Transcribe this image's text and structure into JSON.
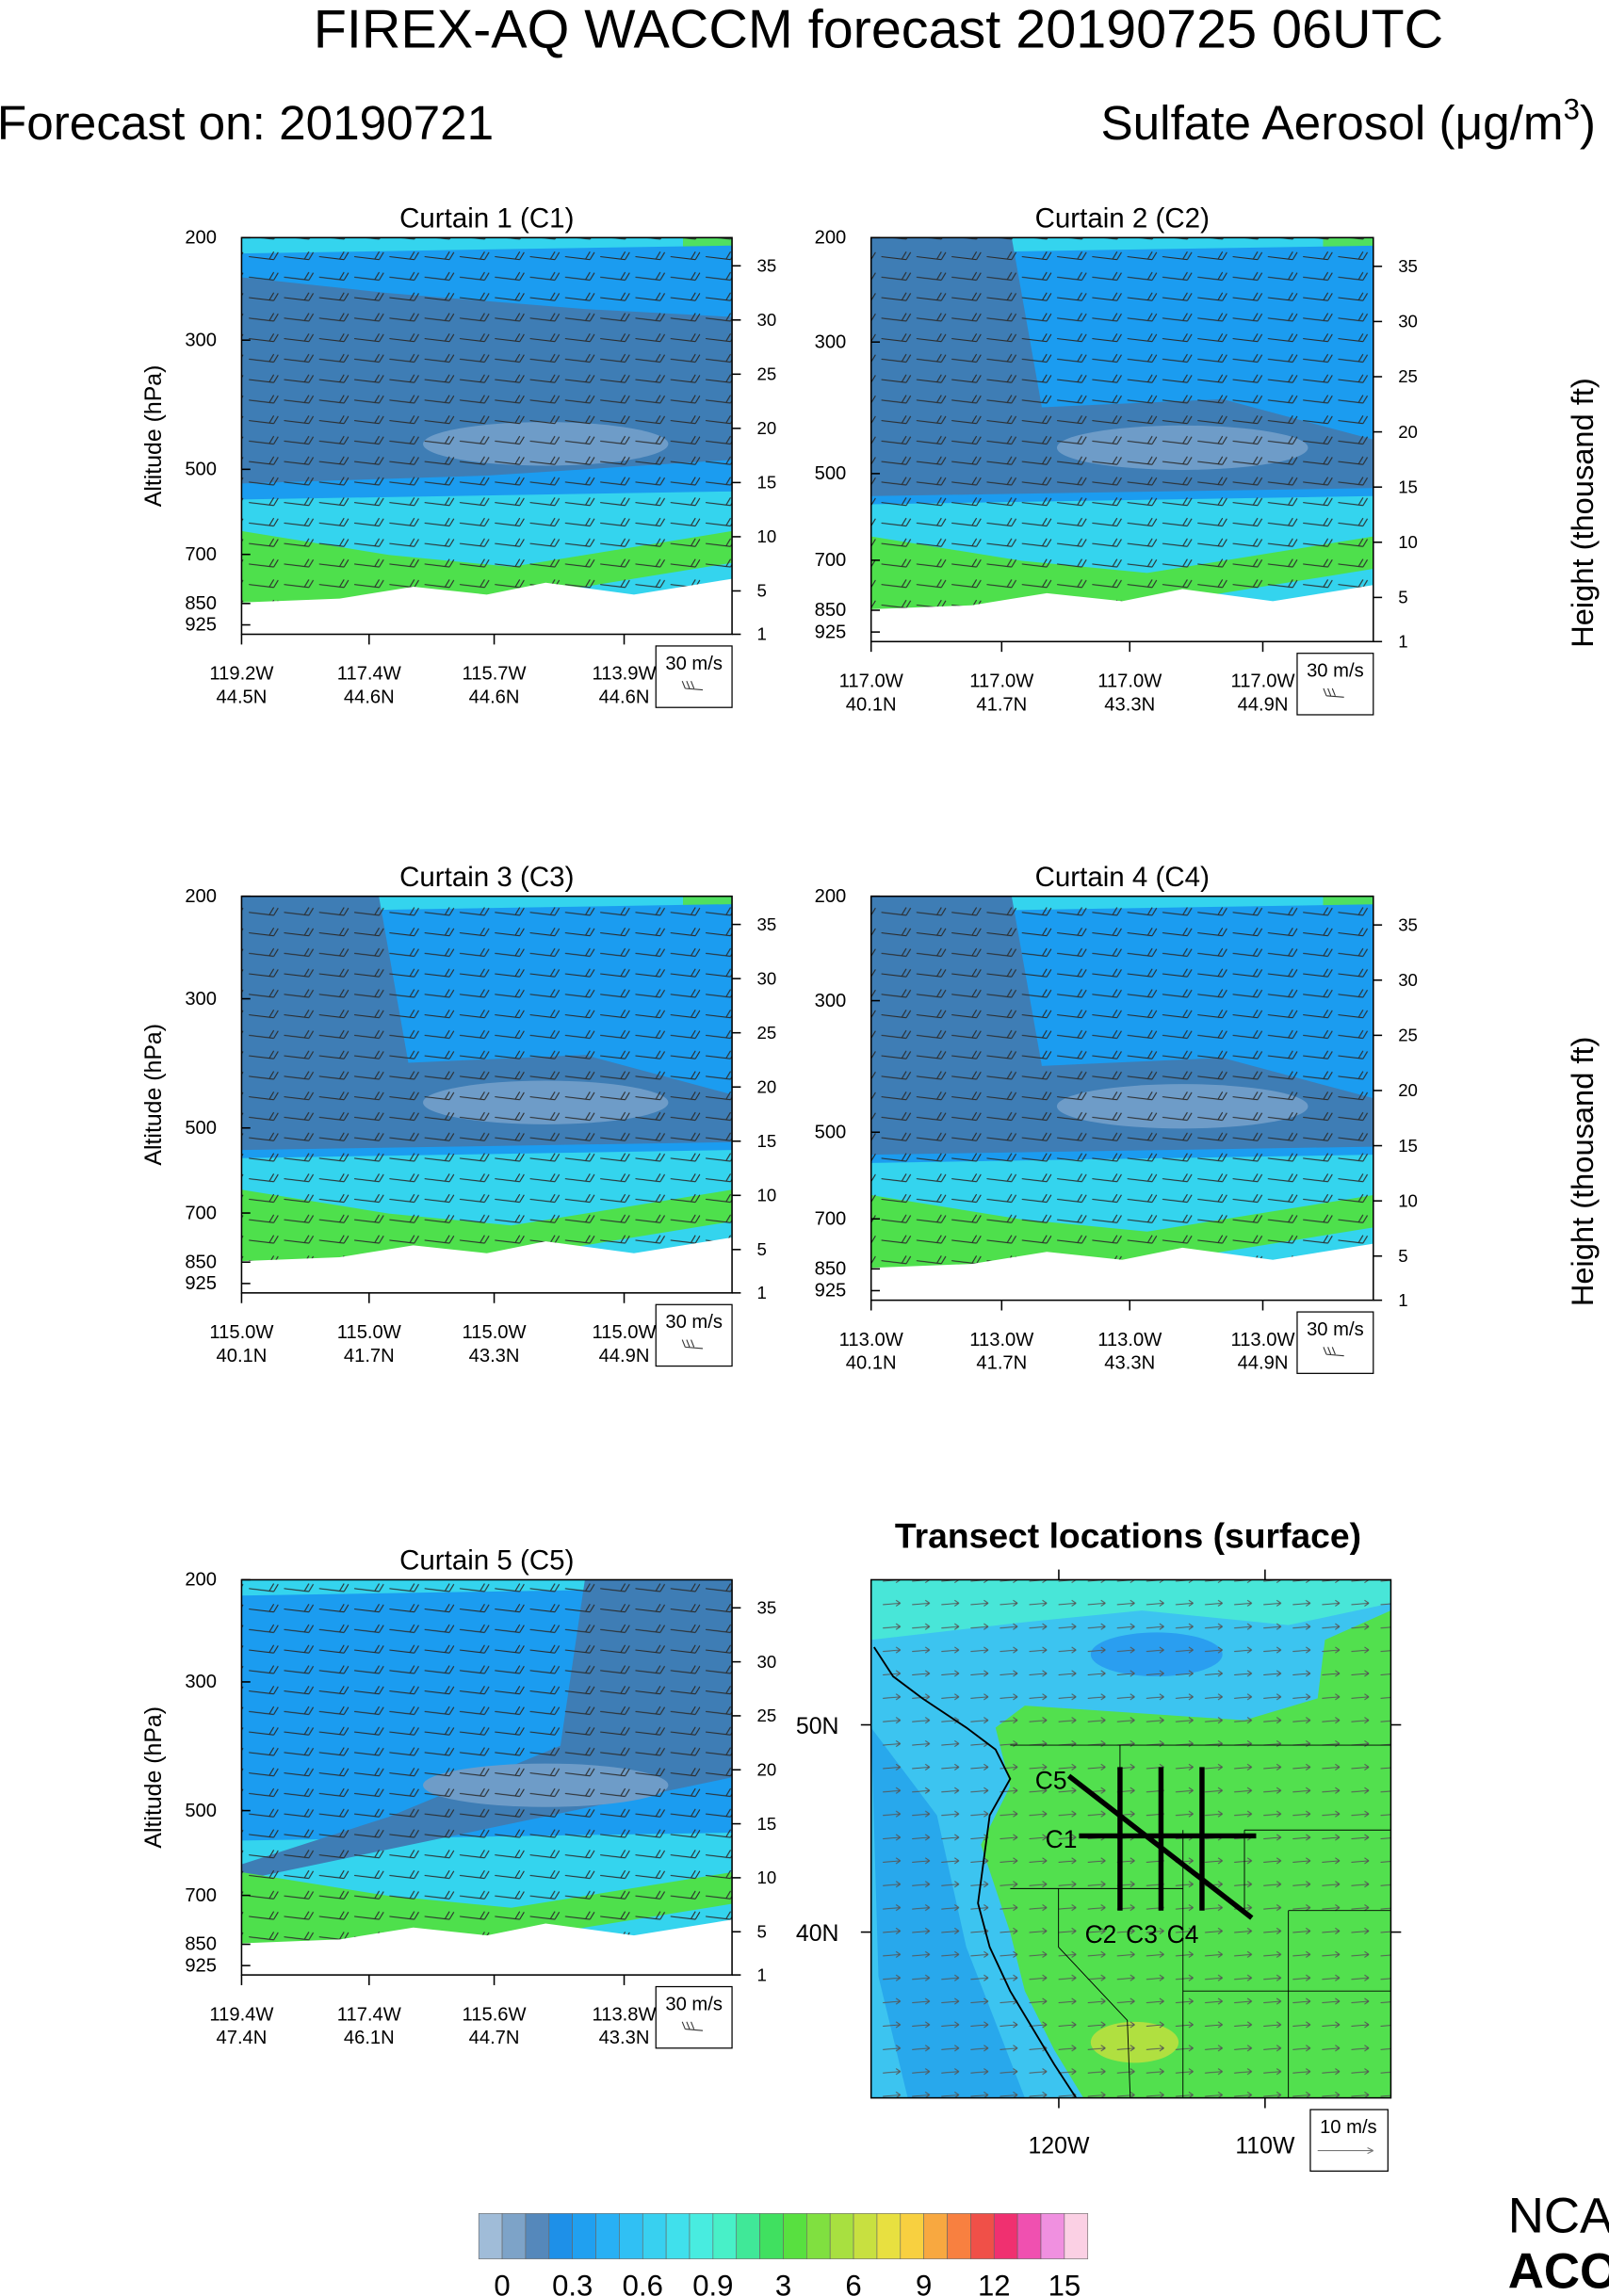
{
  "title": "FIREX-AQ WACCM forecast 20190725 06UTC",
  "forecast_on": "Forecast on: 20190721",
  "species": {
    "text": "Sulfate Aerosol (μg/m",
    "superscript": "3",
    "close": ")"
  },
  "curtains": [
    {
      "title": "Curtain 1 (C1)",
      "ylabel": "Altitude (hPa)",
      "ylim": [
        200,
        960
      ],
      "yticks": [
        200,
        300,
        500,
        700,
        850,
        925
      ],
      "y2lim": [
        1,
        37.6
      ],
      "y2ticks": [
        1,
        5,
        10,
        15,
        20,
        25,
        30,
        35
      ],
      "xlabels": [
        {
          "lon": "119.2W",
          "lat": "44.5N"
        },
        {
          "lon": "117.4W",
          "lat": "44.6N"
        },
        {
          "lon": "115.7W",
          "lat": "44.6N"
        },
        {
          "lon": "113.9W",
          "lat": "44.6N"
        }
      ],
      "reference": "30 m/s"
    },
    {
      "title": "Curtain 2 (C2)",
      "y2label": "Height (thousand ft)",
      "ylim": [
        200,
        960
      ],
      "yticks": [
        200,
        300,
        500,
        700,
        850,
        925
      ],
      "y2lim": [
        1,
        37.6
      ],
      "y2ticks": [
        1,
        5,
        10,
        15,
        20,
        25,
        30,
        35
      ],
      "xlabels": [
        {
          "lon": "117.0W",
          "lat": "40.1N"
        },
        {
          "lon": "117.0W",
          "lat": "41.7N"
        },
        {
          "lon": "117.0W",
          "lat": "43.3N"
        },
        {
          "lon": "117.0W",
          "lat": "44.9N"
        }
      ],
      "reference": "30 m/s"
    },
    {
      "title": "Curtain 3 (C3)",
      "ylabel": "Altitude (hPa)",
      "ylim": [
        200,
        960
      ],
      "yticks": [
        200,
        300,
        500,
        700,
        850,
        925
      ],
      "y2lim": [
        1,
        37.6
      ],
      "y2ticks": [
        1,
        5,
        10,
        15,
        20,
        25,
        30,
        35
      ],
      "xlabels": [
        {
          "lon": "115.0W",
          "lat": "40.1N"
        },
        {
          "lon": "115.0W",
          "lat": "41.7N"
        },
        {
          "lon": "115.0W",
          "lat": "43.3N"
        },
        {
          "lon": "115.0W",
          "lat": "44.9N"
        }
      ],
      "reference": "30 m/s"
    },
    {
      "title": "Curtain 4 (C4)",
      "y2label": "Height (thousand ft)",
      "ylim": [
        200,
        960
      ],
      "yticks": [
        200,
        300,
        500,
        700,
        850,
        925
      ],
      "y2lim": [
        1,
        37.6
      ],
      "y2ticks": [
        1,
        5,
        10,
        15,
        20,
        25,
        30,
        35
      ],
      "xlabels": [
        {
          "lon": "113.0W",
          "lat": "40.1N"
        },
        {
          "lon": "113.0W",
          "lat": "41.7N"
        },
        {
          "lon": "113.0W",
          "lat": "43.3N"
        },
        {
          "lon": "113.0W",
          "lat": "44.9N"
        }
      ],
      "reference": "30 m/s"
    },
    {
      "title": "Curtain 5 (C5)",
      "ylabel": "Altitude (hPa)",
      "ylim": [
        200,
        960
      ],
      "yticks": [
        200,
        300,
        500,
        700,
        850,
        925
      ],
      "y2lim": [
        1,
        37.6
      ],
      "y2ticks": [
        1,
        5,
        10,
        15,
        20,
        25,
        30,
        35
      ],
      "xlabels": [
        {
          "lon": "119.4W",
          "lat": "47.4N"
        },
        {
          "lon": "117.4W",
          "lat": "46.1N"
        },
        {
          "lon": "115.6W",
          "lat": "44.7N"
        },
        {
          "lon": "113.8W",
          "lat": "43.3N"
        }
      ],
      "reference": "30 m/s"
    }
  ],
  "map": {
    "title": "Transect locations (surface)",
    "xlim": [
      -129.1,
      -103.9
    ],
    "ylim": [
      32,
      57
    ],
    "xticks": [
      {
        "value": -120,
        "label": "120W"
      },
      {
        "value": -110,
        "label": "110W"
      }
    ],
    "yticks": [
      {
        "value": 50,
        "label": "50N"
      },
      {
        "value": 40,
        "label": "40N"
      }
    ],
    "transects": [
      "C1",
      "C2",
      "C3",
      "C4",
      "C5"
    ],
    "reference": "10 m/s"
  },
  "colorbar": {
    "colors": [
      "#a0bcd8",
      "#7da3c8",
      "#5588bb",
      "#1e90e8",
      "#20a0f0",
      "#28b0f4",
      "#30c0f4",
      "#38d0f0",
      "#40e0ec",
      "#48ece0",
      "#48f0c8",
      "#40e898",
      "#40e060",
      "#58e040",
      "#80e040",
      "#a8e040",
      "#c8e040",
      "#e8e040",
      "#f8d040",
      "#f8a840",
      "#f88040",
      "#f05048",
      "#f03070",
      "#f050b0",
      "#f090e0",
      "#fbd0e4"
    ],
    "ticks": [
      0,
      0.3,
      0.6,
      0.9,
      3,
      6,
      9,
      12,
      15
    ]
  },
  "logo": [
    "NCA",
    "ACO"
  ]
}
